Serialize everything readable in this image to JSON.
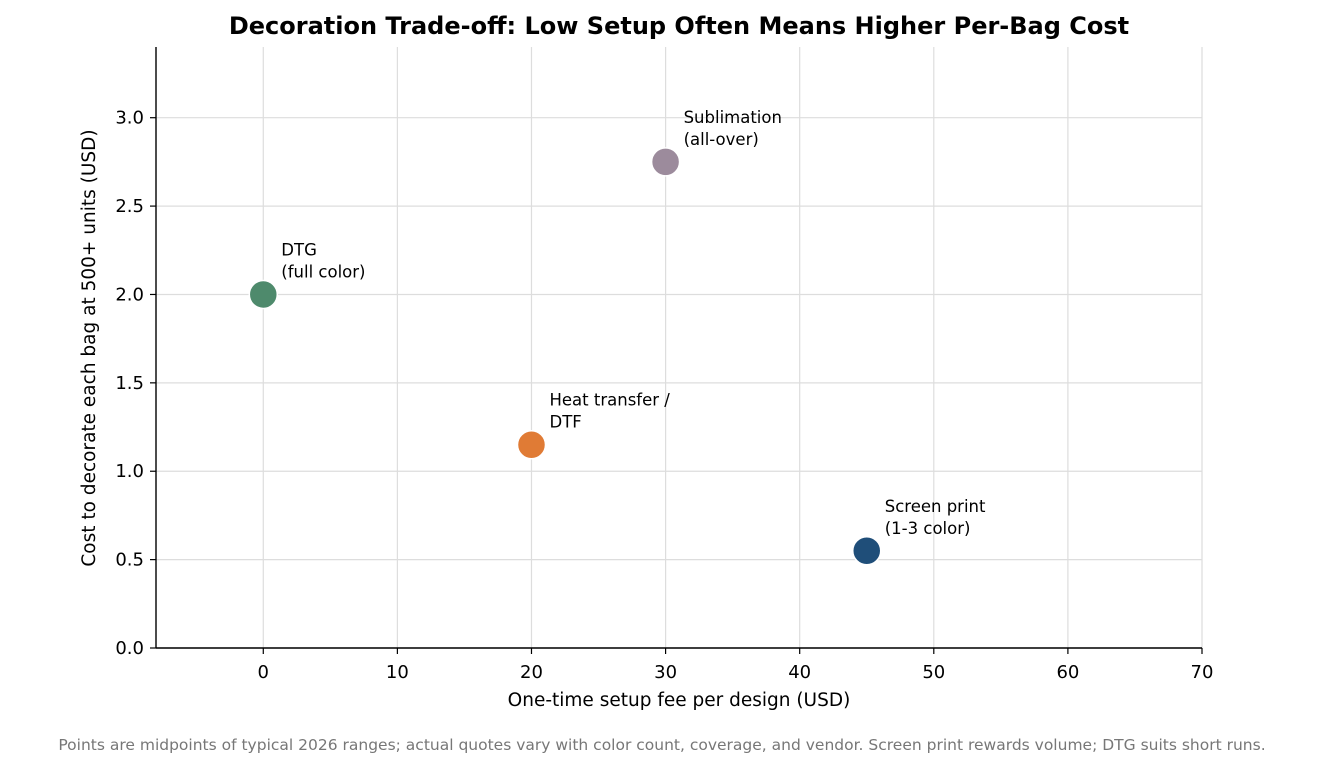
{
  "chart_data": {
    "type": "scatter",
    "title": "Decoration Trade-off: Low Setup Often Means Higher Per-Bag Cost",
    "xlabel": "One-time setup fee per design (USD)",
    "ylabel": "Cost to decorate each bag at 500+ units (USD)",
    "xlim": [
      -8,
      70
    ],
    "ylim": [
      0,
      3.4
    ],
    "x_ticks": [
      "0",
      "10",
      "20",
      "30",
      "40",
      "50",
      "60",
      "70"
    ],
    "x_tick_values": [
      0,
      10,
      20,
      30,
      40,
      50,
      60,
      70
    ],
    "y_ticks": [
      "0.0",
      "0.5",
      "1.0",
      "1.5",
      "2.0",
      "2.5",
      "3.0"
    ],
    "y_tick_values": [
      0,
      0.5,
      1.0,
      1.5,
      2.0,
      2.5,
      3.0
    ],
    "grid": true,
    "points": [
      {
        "label_lines": [
          "DTG",
          "(full color)"
        ],
        "x": 0,
        "y": 2.0,
        "color": "#4e8a6c"
      },
      {
        "label_lines": [
          "Heat transfer /",
          "DTF"
        ],
        "x": 20,
        "y": 1.15,
        "color": "#e07b35"
      },
      {
        "label_lines": [
          "Sublimation",
          "(all-over)"
        ],
        "x": 30,
        "y": 2.75,
        "color": "#9c8b9c"
      },
      {
        "label_lines": [
          "Screen print",
          "(1-3 color)"
        ],
        "x": 45,
        "y": 0.55,
        "color": "#1f4e79"
      }
    ],
    "footnote": "Points are midpoints of typical 2026 ranges; actual quotes vary with color count, coverage, and vendor. Screen print rewards volume; DTG suits short runs."
  }
}
